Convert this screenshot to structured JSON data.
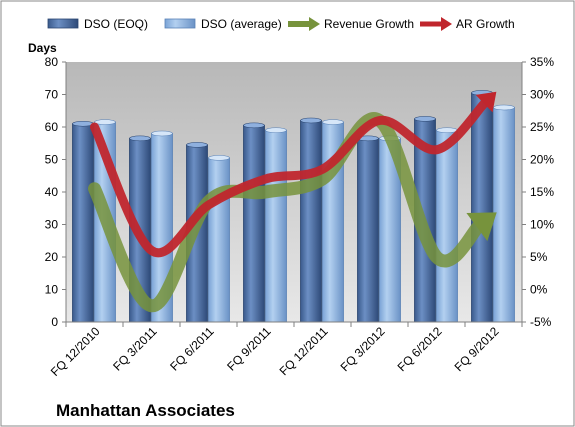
{
  "chart_data": {
    "type": "bar",
    "title": "Manhattan Associates",
    "categories": [
      "FQ 12/2010",
      "FQ 3/2011",
      "FQ 6/2011",
      "FQ 9/2011",
      "FQ 12/2011",
      "FQ 3/2012",
      "FQ 6/2012",
      "FQ 9/2012"
    ],
    "ylabel": "Days",
    "ylim": [
      0,
      80
    ],
    "yticks": [
      "0",
      "10",
      "20",
      "30",
      "40",
      "50",
      "60",
      "70",
      "80"
    ],
    "y2lim": [
      -5,
      35
    ],
    "y2ticks": [
      "-5%",
      "0%",
      "5%",
      "10%",
      "15%",
      "20%",
      "25%",
      "30%",
      "35%"
    ],
    "series": [
      {
        "name": "DSO (EOQ)",
        "type": "bar",
        "axis": "left",
        "color": "#4a6fa5",
        "values": [
          61,
          56.5,
          54.5,
          60.5,
          62,
          56.5,
          62.5,
          70.5
        ]
      },
      {
        "name": "DSO (average)",
        "type": "bar",
        "axis": "left",
        "color": "#8db4e2",
        "values": [
          61.5,
          58,
          50.5,
          59,
          61.5,
          56.5,
          59,
          66
        ]
      },
      {
        "name": "Revenue Growth",
        "type": "line",
        "axis": "right",
        "color": "#77933c",
        "values": [
          15.5,
          -2.5,
          13.5,
          15,
          17,
          26,
          5,
          11.5
        ]
      },
      {
        "name": "AR Growth",
        "type": "line",
        "axis": "right",
        "color": "#c0262d",
        "values": [
          25,
          6,
          13,
          17,
          18.5,
          26,
          21.5,
          30
        ]
      }
    ],
    "grid": false,
    "legend": "top"
  }
}
